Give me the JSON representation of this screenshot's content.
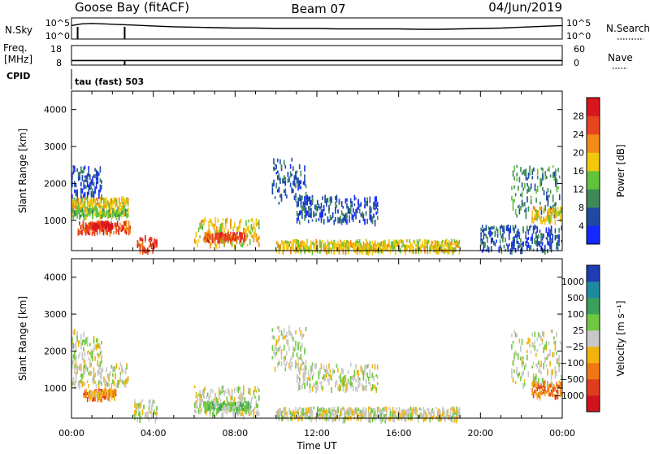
{
  "header": {
    "station": "Goose Bay (fitACF)",
    "beam": "Beam 07",
    "date": "04/Jun/2019"
  },
  "colors": {
    "power": [
      "#1428ff",
      "#1e4aa5",
      "#3d8a57",
      "#5fc43a",
      "#f2c80a",
      "#f28c14",
      "#e8451e",
      "#d9161c"
    ],
    "velocity": [
      "#1e3cb4",
      "#1e8aa0",
      "#3aa05a",
      "#6fc840",
      "#c8c8c8",
      "#f2b40a",
      "#f07814",
      "#e03c1e",
      "#d0141e"
    ],
    "ground_scatter": "#c8c8c8"
  },
  "chart_data": [
    {
      "type": "line",
      "panel": "noise",
      "ylabel_left": "N.Sky",
      "ylabel_right": "N.Search",
      "yticks_left": [
        "10^5",
        "10^0"
      ],
      "yticks_right": [
        "10^5",
        "10^0"
      ],
      "x_hours": [
        0,
        0.5,
        1,
        1.5,
        2,
        2.5,
        3,
        4,
        5,
        6,
        7,
        8,
        9,
        10,
        11,
        12,
        13,
        14,
        15,
        16,
        17,
        18,
        19,
        20,
        21,
        22,
        23,
        24
      ],
      "sky_log10": [
        3.2,
        3.6,
        3.7,
        3.6,
        3.5,
        3.4,
        3.3,
        3.1,
        2.9,
        2.8,
        2.7,
        2.6,
        2.6,
        2.5,
        2.5,
        2.5,
        2.4,
        2.4,
        2.4,
        2.4,
        2.3,
        2.3,
        2.4,
        2.5,
        2.6,
        2.8,
        3.0,
        3.2
      ],
      "drops_hours": [
        0.3,
        2.6
      ]
    },
    {
      "type": "line",
      "panel": "frequency",
      "ylabel_left": "Freq.",
      "ylabel_units": "[MHz]",
      "ylabel_left2": "CPID",
      "ylabel_right": "Nave",
      "yticks_left": [
        "18",
        "8"
      ],
      "yticks_right": [
        "60",
        "0"
      ],
      "freq_mhz": 10.3,
      "drops_hours": [
        2.6
      ]
    },
    {
      "type": "heatmap",
      "panel": "power",
      "annotation": "tau (fast) 503",
      "ylabel": "Slant Range [km]",
      "yticks": [
        1000,
        2000,
        3000,
        4000
      ],
      "ylim": [
        180,
        4500
      ],
      "xlim_hours": [
        0,
        24
      ],
      "colorbar_label": "Power [dB]",
      "colorbar_ticks": [
        "4",
        "8",
        "12",
        "16",
        "20",
        "24",
        "28"
      ],
      "regions": [
        {
          "h0": 0.0,
          "h1": 2.8,
          "r0": 1350,
          "r1": 1650,
          "lvl": 4
        },
        {
          "h0": 0.0,
          "h1": 2.8,
          "r0": 1150,
          "r1": 1350,
          "lvl": 3
        },
        {
          "h0": 0.3,
          "h1": 2.9,
          "r0": 700,
          "r1": 1000,
          "lvl": 6
        },
        {
          "h0": 1.0,
          "h1": 2.0,
          "r0": 850,
          "r1": 1000,
          "lvl": 7
        },
        {
          "h0": 0.0,
          "h1": 1.5,
          "r0": 1700,
          "r1": 2500,
          "lvl": 1
        },
        {
          "h0": 3.2,
          "h1": 4.2,
          "r0": 180,
          "r1": 600,
          "lvl": 6
        },
        {
          "h0": 6.0,
          "h1": 9.2,
          "r0": 350,
          "r1": 1100,
          "lvl": 4
        },
        {
          "h0": 6.5,
          "h1": 8.5,
          "r0": 500,
          "r1": 700,
          "lvl": 6
        },
        {
          "h0": 9.8,
          "h1": 11.5,
          "r0": 1500,
          "r1": 2700,
          "lvl": 1
        },
        {
          "h0": 10.0,
          "h1": 19.0,
          "r0": 200,
          "r1": 500,
          "lvl": 4
        },
        {
          "h0": 11.0,
          "h1": 15.0,
          "r0": 1000,
          "r1": 1700,
          "lvl": 1
        },
        {
          "h0": 21.5,
          "h1": 23.9,
          "r0": 1100,
          "r1": 2500,
          "lvl": 2
        },
        {
          "h0": 22.5,
          "h1": 24.0,
          "r0": 1000,
          "r1": 1400,
          "lvl": 4
        },
        {
          "h0": 20.0,
          "h1": 24.0,
          "r0": 200,
          "r1": 900,
          "lvl": 1
        }
      ]
    },
    {
      "type": "heatmap",
      "panel": "velocity",
      "ylabel": "Slant Range [km]",
      "yticks": [
        1000,
        2000,
        3000,
        4000
      ],
      "ylim": [
        180,
        4500
      ],
      "xlim_hours": [
        0,
        24
      ],
      "xticks": [
        "00:00",
        "04:00",
        "08:00",
        "12:00",
        "16:00",
        "20:00",
        "00:00"
      ],
      "xlabel": "Time UT",
      "colorbar_label": "Velocity [m s⁻¹]",
      "colorbar_ticks": [
        "1000",
        "500",
        "100",
        "25",
        "−25",
        "−100",
        "−500",
        "−1000"
      ],
      "regions": [
        {
          "h0": 0.0,
          "h1": 2.8,
          "r0": 1100,
          "r1": 1700,
          "lvl": 4
        },
        {
          "h0": 0.5,
          "h1": 2.2,
          "r0": 750,
          "r1": 1000,
          "lvl": 2
        },
        {
          "h0": 0.8,
          "h1": 1.8,
          "r0": 850,
          "r1": 950,
          "lvl": 3
        },
        {
          "h0": 0.0,
          "h1": 1.5,
          "r0": 1700,
          "r1": 2600,
          "lvl": 4
        },
        {
          "h0": 3.0,
          "h1": 4.2,
          "r0": 200,
          "r1": 700,
          "lvl": 4
        },
        {
          "h0": 6.0,
          "h1": 9.2,
          "r0": 300,
          "r1": 1100,
          "lvl": 4
        },
        {
          "h0": 6.5,
          "h1": 8.8,
          "r0": 450,
          "r1": 650,
          "lvl": 5
        },
        {
          "h0": 9.8,
          "h1": 11.5,
          "r0": 1500,
          "r1": 2700,
          "lvl": 4
        },
        {
          "h0": 10.0,
          "h1": 19.0,
          "r0": 200,
          "r1": 500,
          "lvl": 4
        },
        {
          "h0": 11.0,
          "h1": 15.0,
          "r0": 1000,
          "r1": 1700,
          "lvl": 4
        },
        {
          "h0": 21.5,
          "h1": 24.0,
          "r0": 1100,
          "r1": 2600,
          "lvl": 4
        },
        {
          "h0": 22.5,
          "h1": 24.0,
          "r0": 800,
          "r1": 1200,
          "lvl": 2
        }
      ]
    }
  ]
}
